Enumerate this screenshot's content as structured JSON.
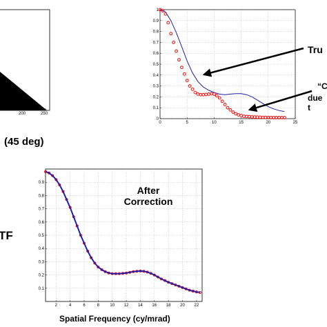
{
  "colors": {
    "measured": "#ff0000",
    "fit": "#1f1fa8",
    "background": "#ffffff"
  },
  "edge_panel": {
    "xticks": [
      "200",
      "250"
    ],
    "caption": "(45 deg)"
  },
  "truncated_side_label": "TF",
  "chart_data": [
    {
      "type": "line",
      "xlim": [
        0,
        25
      ],
      "ylim": [
        0,
        1
      ],
      "xticks": [
        "0",
        "5",
        "10",
        "15",
        "20",
        "25"
      ],
      "yticks": [
        "0",
        "0.1",
        "0.2",
        "0.3",
        "0.4",
        "0.5",
        "0.6",
        "0.7",
        "0.8",
        "0.9",
        "1"
      ],
      "grid": true,
      "annotations": [
        "Tru",
        "“C",
        "due t"
      ],
      "series": [
        {
          "color": "#ff0000",
          "style": "dots",
          "x": [
            0,
            0.5,
            1,
            1.5,
            2,
            2.5,
            3,
            3.5,
            4,
            4.5,
            5,
            5.5,
            6,
            6.5,
            7,
            7.5,
            8,
            8.5,
            9,
            9.5,
            10,
            10.5,
            11,
            11.5,
            12,
            12.5,
            13,
            13.5,
            14,
            14.5,
            15,
            15.5,
            16,
            16.5,
            17,
            17.5,
            18,
            18.5,
            19,
            19.5,
            20,
            20.5,
            21,
            21.5,
            22,
            22.5,
            23
          ],
          "y": [
            1.0,
            0.99,
            0.96,
            0.88,
            0.78,
            0.7,
            0.62,
            0.54,
            0.47,
            0.41,
            0.35,
            0.3,
            0.27,
            0.24,
            0.225,
            0.22,
            0.22,
            0.222,
            0.225,
            0.228,
            0.225,
            0.21,
            0.19,
            0.16,
            0.13,
            0.1,
            0.08,
            0.06,
            0.045,
            0.035,
            0.028,
            0.022,
            0.02,
            0.018,
            0.016,
            0.015,
            0.014,
            0.013,
            0.012,
            0.012,
            0.011,
            0.011,
            0.01,
            0.01,
            0.01,
            0.01,
            0.01
          ]
        },
        {
          "color": "#1f1fa8",
          "style": "line",
          "x": [
            0,
            1,
            2,
            3,
            4,
            5,
            6,
            7,
            8,
            9,
            10,
            11,
            12,
            13,
            14,
            15,
            16,
            17,
            18,
            19,
            20,
            21,
            22,
            23
          ],
          "y": [
            1.0,
            0.98,
            0.9,
            0.79,
            0.66,
            0.53,
            0.42,
            0.34,
            0.29,
            0.26,
            0.24,
            0.225,
            0.22,
            0.225,
            0.23,
            0.23,
            0.22,
            0.2,
            0.17,
            0.14,
            0.11,
            0.09,
            0.075,
            0.065
          ]
        }
      ]
    },
    {
      "type": "line",
      "title": "After\nCorrection",
      "xlabel": "Spatial Frequency (cy/mrad)",
      "xlim": [
        0.5,
        22.8
      ],
      "ylim": [
        0,
        1
      ],
      "xticks": [
        "2",
        "4",
        "6",
        "8",
        "10",
        "12",
        "14",
        "16",
        "18",
        "20",
        "22"
      ],
      "yticks": [
        "0.1",
        "0.2",
        "0.3",
        "0.4",
        "0.5",
        "0.6",
        "0.7",
        "0.8",
        "0.9"
      ],
      "grid": true,
      "series": [
        {
          "color": "#ff0000",
          "style": "dots",
          "x": [
            0.5,
            1,
            1.5,
            2,
            2.5,
            3,
            3.5,
            4,
            4.5,
            5,
            5.5,
            6,
            6.5,
            7,
            7.5,
            8,
            8.5,
            9,
            9.5,
            10,
            10.5,
            11,
            11.5,
            12,
            12.5,
            13,
            13.5,
            14,
            14.5,
            15,
            15.5,
            16,
            16.5,
            17,
            17.5,
            18,
            18.5,
            19,
            19.5,
            20,
            20.5,
            21,
            21.5,
            22,
            22.5
          ],
          "y": [
            0.98,
            0.97,
            0.95,
            0.92,
            0.88,
            0.83,
            0.77,
            0.71,
            0.64,
            0.57,
            0.5,
            0.44,
            0.38,
            0.33,
            0.29,
            0.26,
            0.24,
            0.225,
            0.215,
            0.21,
            0.21,
            0.21,
            0.212,
            0.215,
            0.22,
            0.225,
            0.228,
            0.23,
            0.228,
            0.222,
            0.212,
            0.2,
            0.185,
            0.17,
            0.158,
            0.145,
            0.135,
            0.125,
            0.115,
            0.105,
            0.095,
            0.085,
            0.078,
            0.072,
            0.068
          ]
        },
        {
          "color": "#1f1fa8",
          "style": "line",
          "x": [
            0.5,
            1,
            1.5,
            2,
            2.5,
            3,
            3.5,
            4,
            4.5,
            5,
            5.5,
            6,
            6.5,
            7,
            7.5,
            8,
            8.5,
            9,
            9.5,
            10,
            10.5,
            11,
            11.5,
            12,
            12.5,
            13,
            13.5,
            14,
            14.5,
            15,
            15.5,
            16,
            16.5,
            17,
            17.5,
            18,
            18.5,
            19,
            19.5,
            20,
            20.5,
            21,
            21.5,
            22,
            22.5
          ],
          "y": [
            0.98,
            0.97,
            0.95,
            0.92,
            0.88,
            0.83,
            0.77,
            0.71,
            0.64,
            0.57,
            0.5,
            0.44,
            0.38,
            0.33,
            0.29,
            0.26,
            0.24,
            0.225,
            0.215,
            0.21,
            0.21,
            0.21,
            0.212,
            0.215,
            0.22,
            0.225,
            0.228,
            0.23,
            0.228,
            0.222,
            0.212,
            0.2,
            0.185,
            0.17,
            0.158,
            0.145,
            0.135,
            0.125,
            0.115,
            0.105,
            0.095,
            0.085,
            0.078,
            0.072,
            0.068
          ]
        }
      ]
    }
  ]
}
